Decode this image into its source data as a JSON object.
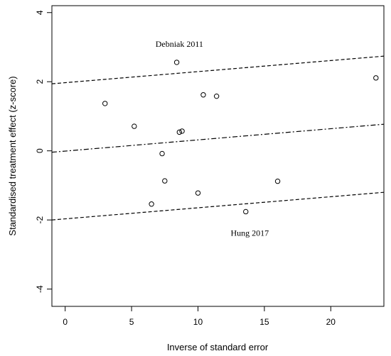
{
  "chart_data": {
    "type": "scatter",
    "title": "",
    "xlabel": "Inverse of standard error",
    "ylabel": "Standardised treatment effect (z-score)",
    "xlim": [
      -1,
      24
    ],
    "ylim": [
      -4.5,
      4.2
    ],
    "xticks": [
      0,
      5,
      10,
      15,
      20
    ],
    "yticks": [
      -4,
      -2,
      0,
      2,
      4
    ],
    "grid": false,
    "points": [
      {
        "x": 3.0,
        "y": 1.37
      },
      {
        "x": 5.2,
        "y": 0.71
      },
      {
        "x": 8.4,
        "y": 2.56
      },
      {
        "x": 8.6,
        "y": 0.54
      },
      {
        "x": 8.8,
        "y": 0.57
      },
      {
        "x": 10.4,
        "y": 1.62
      },
      {
        "x": 11.4,
        "y": 1.58
      },
      {
        "x": 23.4,
        "y": 2.11
      },
      {
        "x": 7.3,
        "y": -0.08
      },
      {
        "x": 7.5,
        "y": -0.87
      },
      {
        "x": 10.0,
        "y": -1.22
      },
      {
        "x": 16.0,
        "y": -0.88
      },
      {
        "x": 6.5,
        "y": -1.54
      },
      {
        "x": 13.6,
        "y": -1.76
      }
    ],
    "lines": [
      {
        "name": "upper-limit",
        "style": "dashed",
        "x": [
          -1,
          24
        ],
        "y": [
          1.94,
          2.74
        ]
      },
      {
        "name": "regression",
        "style": "dotdash",
        "x": [
          -1,
          24
        ],
        "y": [
          -0.04,
          0.77
        ]
      },
      {
        "name": "lower-limit",
        "style": "dashed",
        "x": [
          -1,
          24
        ],
        "y": [
          -2.0,
          -1.2
        ]
      }
    ],
    "annotations": [
      {
        "text": "Debniak 2011",
        "x": 8.6,
        "y": 3.09
      },
      {
        "text": "Hung 2017",
        "x": 13.9,
        "y": -2.38
      }
    ]
  }
}
